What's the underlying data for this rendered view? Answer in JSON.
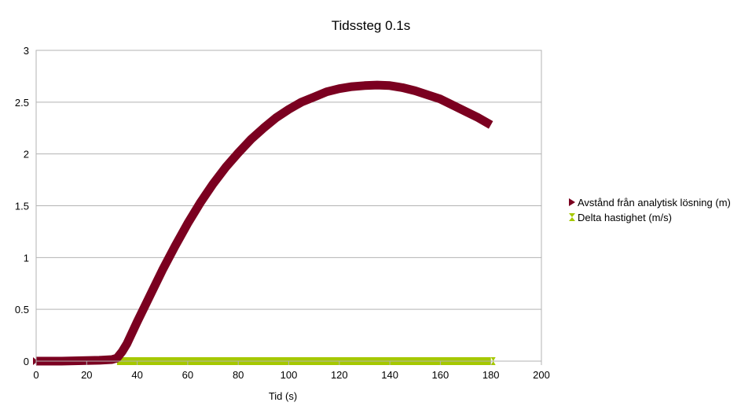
{
  "chart_data": {
    "type": "line",
    "title": "Tidssteg 0.1s",
    "xlabel": "Tid (s)",
    "ylabel": "",
    "xlim": [
      0,
      200
    ],
    "ylim": [
      0,
      3
    ],
    "xticks": [
      "0",
      "20",
      "40",
      "60",
      "80",
      "100",
      "120",
      "140",
      "160",
      "180",
      "200"
    ],
    "yticks": [
      "0",
      "0.5",
      "1",
      "1.5",
      "2",
      "2.5",
      "3"
    ],
    "grid": "horizontal",
    "legend_position": "right",
    "series": [
      {
        "name": "Avstånd från analytisk lösning (m)",
        "color": "#7b0020",
        "marker": "right-triangle",
        "x": [
          0,
          10,
          20,
          25,
          30,
          32,
          34,
          36,
          40,
          45,
          50,
          55,
          60,
          65,
          70,
          75,
          80,
          85,
          90,
          95,
          100,
          105,
          110,
          115,
          120,
          125,
          130,
          135,
          140,
          145,
          150,
          155,
          160,
          165,
          170,
          175,
          180
        ],
        "y": [
          0,
          0,
          0.005,
          0.008,
          0.015,
          0.03,
          0.09,
          0.17,
          0.38,
          0.63,
          0.88,
          1.11,
          1.33,
          1.53,
          1.71,
          1.87,
          2.01,
          2.14,
          2.25,
          2.35,
          2.43,
          2.5,
          2.55,
          2.6,
          2.63,
          2.65,
          2.66,
          2.665,
          2.66,
          2.64,
          2.61,
          2.57,
          2.53,
          2.47,
          2.41,
          2.35,
          2.28
        ]
      },
      {
        "name": "Delta hastighet (m/s)",
        "color": "#a5c800",
        "marker": "hourglass",
        "x": [
          32,
          180
        ],
        "y": [
          0,
          0
        ]
      }
    ]
  }
}
